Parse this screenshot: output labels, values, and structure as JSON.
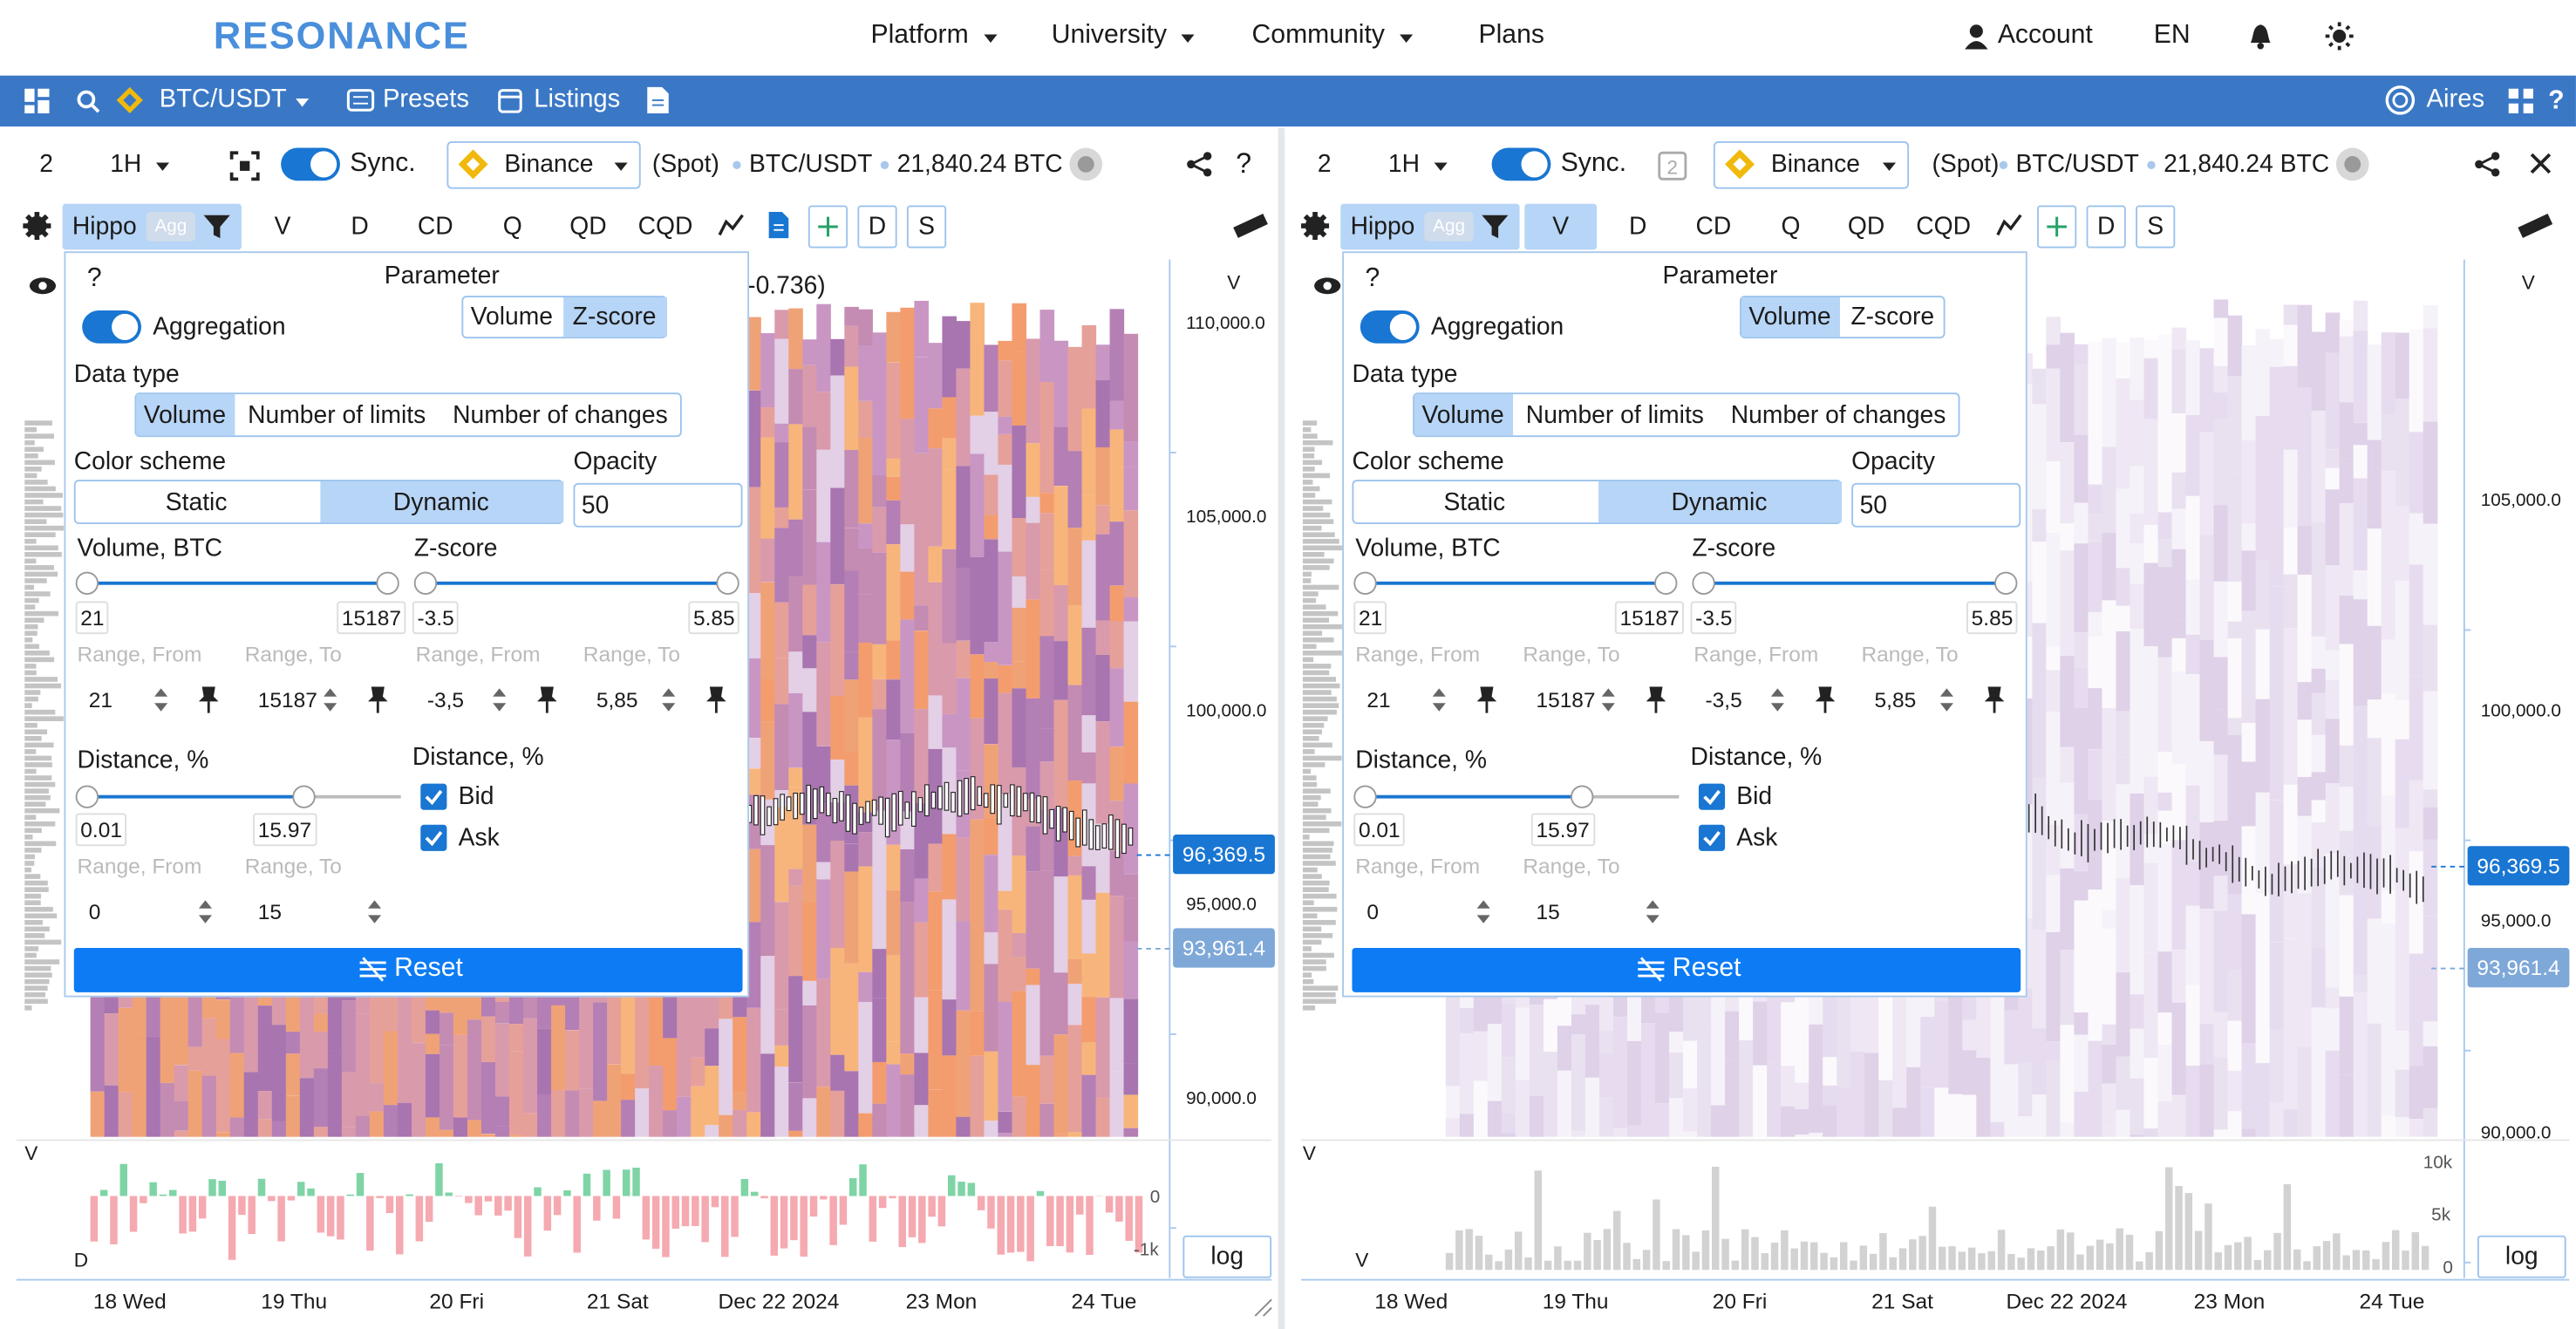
{
  "header": {
    "logo": "RESONANCE",
    "nav": [
      "Platform",
      "University",
      "Community",
      "Plans"
    ],
    "account": "Account",
    "language": "EN"
  },
  "toolbar": {
    "pair": "BTC/USDT",
    "presets": "Presets",
    "listings": "Listings",
    "aires": "Aires"
  },
  "panels": [
    {
      "layout": "2",
      "interval": "1H",
      "sync": "Sync.",
      "exchange": "Binance",
      "market": "(Spot)",
      "pair": "BTC/USDT",
      "price": "21,840.24 BTC",
      "help": "?",
      "indicator": "Hippo",
      "agg": "Agg",
      "tabs": [
        "V",
        "D",
        "CD",
        "Q",
        "QD",
        "CQD"
      ],
      "extra_tabs": [
        "D",
        "S"
      ],
      "legend": "(-0.736)",
      "popup": {
        "help": "?",
        "parameter_title": "Parameter",
        "parameter_options": [
          "Volume",
          "Z-score"
        ],
        "aggregation": "Aggregation",
        "data_type_title": "Data type",
        "data_types": [
          "Volume",
          "Number of limits",
          "Number of changes"
        ],
        "color_scheme_title": "Color scheme",
        "color_schemes": [
          "Static",
          "Dynamic"
        ],
        "opacity_title": "Opacity",
        "opacity": "50",
        "volume_title": "Volume, BTC",
        "volume_min": "21",
        "volume_max": "15187",
        "zscore_title": "Z-score",
        "zscore_min": "-3.5",
        "zscore_max": "5.85",
        "range_labels": [
          "Range, From",
          "Range, To",
          "Range, From",
          "Range, To"
        ],
        "volume_from": "21",
        "volume_to": "15187",
        "zscore_from": "-3,5",
        "zscore_to": "5,85",
        "distance_title": "Distance, %",
        "distance_min": "0.01",
        "distance_max": "15.97",
        "distance_range_labels": [
          "Range, From",
          "Range, To"
        ],
        "distance_from": "0",
        "distance_to": "15",
        "side_title": "Distance, %",
        "bid": "Bid",
        "ask": "Ask",
        "reset": "Reset"
      },
      "price_axis_title": "V",
      "price_ticks": [
        "110,000.0",
        "105,000.0",
        "100,000.0",
        "95,000.0",
        "90,000.0"
      ],
      "price_badges": [
        "96,369.5",
        "93,961.4"
      ],
      "sub_title": "V",
      "sub_ticks": [
        "0",
        "-1k"
      ],
      "sub_label": "D",
      "log": "log",
      "x_labels": [
        "18 Wed",
        "19 Thu",
        "20 Fri",
        "21 Sat",
        "Dec 22 2024",
        "23 Mon",
        "24 Tue"
      ]
    },
    {
      "layout": "2",
      "interval": "1H",
      "sync": "Sync.",
      "exchange": "Binance",
      "market": "(Spot)",
      "pair": "BTC/USDT",
      "price": "21,840.24 BTC",
      "indicator": "Hippo",
      "agg": "Agg",
      "tabs": [
        "V",
        "D",
        "CD",
        "Q",
        "QD",
        "CQD"
      ],
      "extra_tabs": [
        "D",
        "S"
      ],
      "popup": {
        "help": "?",
        "parameter_title": "Parameter",
        "parameter_options": [
          "Volume",
          "Z-score"
        ],
        "aggregation": "Aggregation",
        "data_type_title": "Data type",
        "data_types": [
          "Volume",
          "Number of limits",
          "Number of changes"
        ],
        "color_scheme_title": "Color scheme",
        "color_schemes": [
          "Static",
          "Dynamic"
        ],
        "opacity_title": "Opacity",
        "opacity": "50",
        "volume_title": "Volume, BTC",
        "volume_min": "21",
        "volume_max": "15187",
        "zscore_title": "Z-score",
        "zscore_min": "-3.5",
        "zscore_max": "5.85",
        "range_labels": [
          "Range, From",
          "Range, To",
          "Range, From",
          "Range, To"
        ],
        "volume_from": "21",
        "volume_to": "15187",
        "zscore_from": "-3,5",
        "zscore_to": "5,85",
        "distance_title": "Distance, %",
        "distance_min": "0.01",
        "distance_max": "15.97",
        "distance_range_labels": [
          "Range, From",
          "Range, To"
        ],
        "distance_from": "0",
        "distance_to": "15",
        "side_title": "Distance, %",
        "bid": "Bid",
        "ask": "Ask",
        "reset": "Reset"
      },
      "price_axis_title": "V",
      "price_ticks": [
        "105,000.0",
        "100,000.0",
        "95,000.0",
        "90,000.0"
      ],
      "price_badges": [
        "96,369.5",
        "93,961.4"
      ],
      "sub_title": "V",
      "sub_ticks": [
        "10k",
        "5k",
        "0"
      ],
      "sub_label": "V",
      "log": "log",
      "x_labels": [
        "18 Wed",
        "19 Thu",
        "20 Fri",
        "21 Sat",
        "Dec 22 2024",
        "23 Mon",
        "24 Tue"
      ]
    }
  ]
}
